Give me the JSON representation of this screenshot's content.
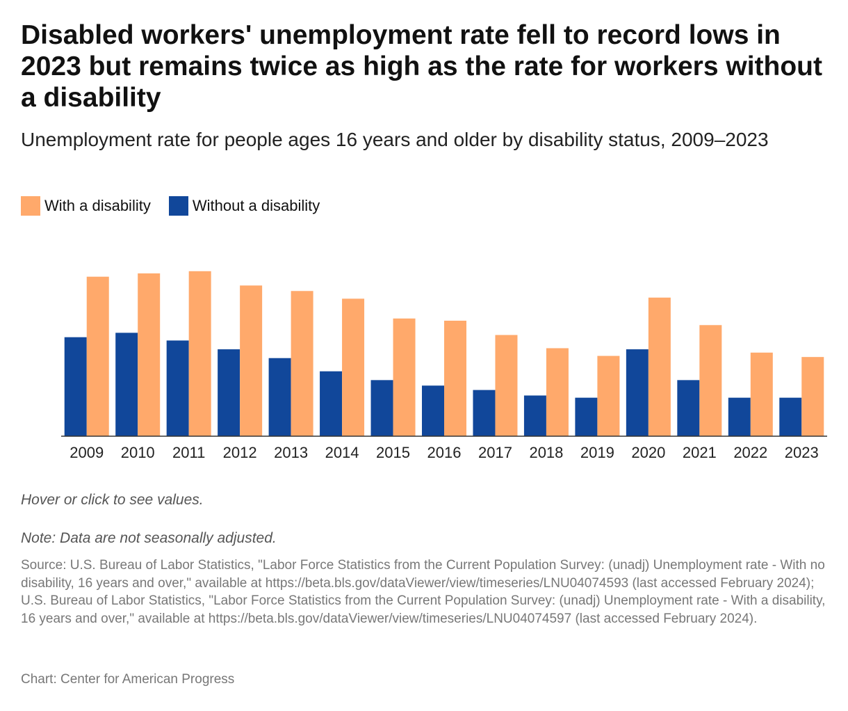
{
  "chart_data": {
    "type": "bar",
    "title": "Disabled workers' unemployment rate fell to record lows in 2023 but remains twice as high as the rate for workers without a disability",
    "subtitle": "Unemployment rate for people ages 16 years and older by disability status, 2009–2023",
    "categories": [
      "2009",
      "2010",
      "2011",
      "2012",
      "2013",
      "2014",
      "2015",
      "2016",
      "2017",
      "2018",
      "2019",
      "2020",
      "2021",
      "2022",
      "2023"
    ],
    "series": [
      {
        "name": "Without a disability",
        "color": "#11479a",
        "values": [
          9.0,
          9.4,
          8.7,
          7.9,
          7.1,
          5.9,
          5.1,
          4.6,
          4.2,
          3.7,
          3.5,
          7.9,
          5.1,
          3.5,
          3.5
        ]
      },
      {
        "name": "With a disability",
        "color": "#ffa96b",
        "values": [
          14.5,
          14.8,
          15.0,
          13.7,
          13.2,
          12.5,
          10.7,
          10.5,
          9.2,
          8.0,
          7.3,
          12.6,
          10.1,
          7.6,
          7.2
        ]
      }
    ],
    "ylim": [
      0,
      16
    ],
    "hover_hint": "Hover or click to see values.",
    "note": "Note: Data are not seasonally adjusted.",
    "source": "Source: U.S. Bureau of Labor Statistics, \"Labor Force Statistics from the Current Population Survey: (unadj) Unemployment rate - With no disability, 16 years and over,\" available at https://beta.bls.gov/dataViewer/view/timeseries/LNU04074593 (last accessed February 2024); U.S. Bureau of Labor Statistics, \"Labor Force Statistics from the Current Population Survey: (unadj) Unemployment rate - With a disability, 16 years and over,\" available at https://beta.bls.gov/dataViewer/view/timeseries/LNU04074597 (last accessed February 2024).",
    "credit": "Chart: Center for American Progress"
  }
}
